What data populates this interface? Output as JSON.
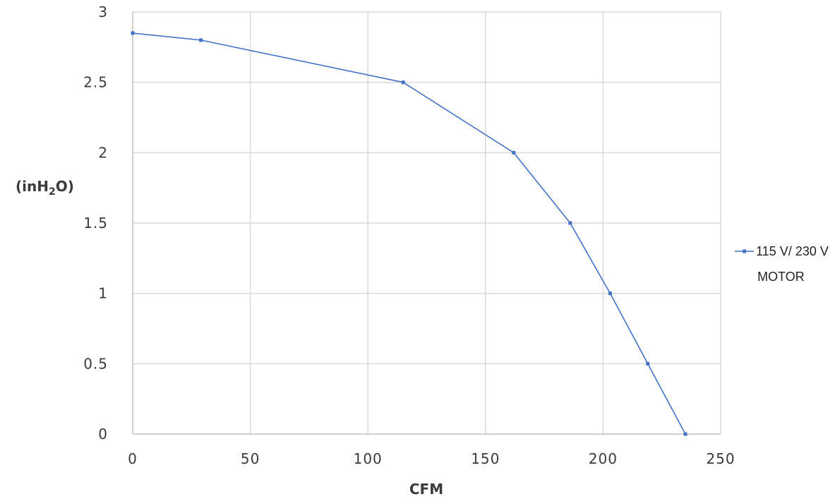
{
  "chart_data": {
    "type": "line",
    "xlabel": "CFM",
    "ylabel_parts": [
      "(inH",
      "2",
      "O)"
    ],
    "xlim": [
      0,
      250
    ],
    "ylim": [
      0,
      3
    ],
    "x_ticks": [
      0,
      50,
      100,
      150,
      200,
      250
    ],
    "y_ticks": [
      0,
      0.5,
      1,
      1.5,
      2,
      2.5,
      3
    ],
    "grid": true,
    "legend_position": "right",
    "series": [
      {
        "name_lines": [
          "115 V/ 230 V",
          "MOTOR"
        ],
        "color": "#4472c4",
        "points": [
          {
            "x": 0,
            "y": 2.85
          },
          {
            "x": 29,
            "y": 2.8
          },
          {
            "x": 115,
            "y": 2.5
          },
          {
            "x": 162,
            "y": 2.0
          },
          {
            "x": 186,
            "y": 1.5
          },
          {
            "x": 203,
            "y": 1.0
          },
          {
            "x": 219,
            "y": 0.5
          },
          {
            "x": 235,
            "y": 0.0
          }
        ]
      }
    ]
  }
}
